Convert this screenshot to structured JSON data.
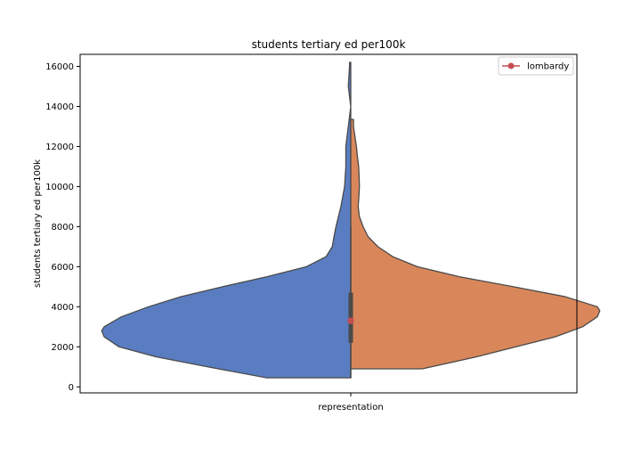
{
  "chart_data": {
    "type": "violin",
    "title": "students tertiary ed per100k",
    "xlabel": "",
    "ylabel": "students tertiary ed per100k",
    "categories": [
      "representation"
    ],
    "ylim": [
      -300,
      16600
    ],
    "yticks": [
      0,
      2000,
      4000,
      6000,
      8000,
      10000,
      12000,
      14000,
      16000
    ],
    "split": true,
    "series": [
      {
        "color": "#5a7dc1",
        "y_range": [
          450,
          16200
        ],
        "profile": [
          [
            450,
            0.34
          ],
          [
            1000,
            0.58
          ],
          [
            1500,
            0.79
          ],
          [
            2000,
            0.94
          ],
          [
            2500,
            1.0
          ],
          [
            2800,
            1.01
          ],
          [
            3000,
            1.0
          ],
          [
            3500,
            0.93
          ],
          [
            4000,
            0.82
          ],
          [
            4500,
            0.69
          ],
          [
            5000,
            0.52
          ],
          [
            5500,
            0.34
          ],
          [
            6000,
            0.18
          ],
          [
            6500,
            0.1
          ],
          [
            7000,
            0.075
          ],
          [
            7500,
            0.068
          ],
          [
            8000,
            0.06
          ],
          [
            9000,
            0.04
          ],
          [
            10000,
            0.025
          ],
          [
            11000,
            0.02
          ],
          [
            12000,
            0.02
          ],
          [
            13000,
            0.01
          ],
          [
            14000,
            0.0
          ],
          [
            15000,
            0.01
          ],
          [
            16000,
            0.005
          ],
          [
            16200,
            0.005
          ]
        ]
      },
      {
        "color": "#d9875a",
        "y_range": [
          900,
          13350
        ],
        "profile": [
          [
            900,
            0.29
          ],
          [
            1500,
            0.51
          ],
          [
            2000,
            0.67
          ],
          [
            2500,
            0.83
          ],
          [
            3000,
            0.94
          ],
          [
            3500,
            1.0
          ],
          [
            3800,
            1.01
          ],
          [
            4000,
            1.0
          ],
          [
            4500,
            0.87
          ],
          [
            5000,
            0.66
          ],
          [
            5500,
            0.44
          ],
          [
            6000,
            0.27
          ],
          [
            6500,
            0.17
          ],
          [
            7000,
            0.11
          ],
          [
            7500,
            0.07
          ],
          [
            8000,
            0.05
          ],
          [
            8500,
            0.035
          ],
          [
            9000,
            0.03
          ],
          [
            9500,
            0.033
          ],
          [
            10000,
            0.035
          ],
          [
            10500,
            0.034
          ],
          [
            11000,
            0.032
          ],
          [
            11500,
            0.027
          ],
          [
            12000,
            0.023
          ],
          [
            12500,
            0.017
          ],
          [
            13000,
            0.011
          ],
          [
            13350,
            0.011
          ]
        ]
      }
    ],
    "inner_box": {
      "q1": 2200,
      "q3": 4700,
      "whisker_low": 450,
      "whisker_high": 8000,
      "median": 3300
    },
    "legend": {
      "location": "top-right",
      "entries": [
        {
          "label": "lombardy",
          "color": "#c44e52",
          "marker": "circle-line"
        }
      ]
    },
    "highlight_point": {
      "label": "lombardy",
      "y": 3300,
      "color": "#c44e52"
    }
  }
}
